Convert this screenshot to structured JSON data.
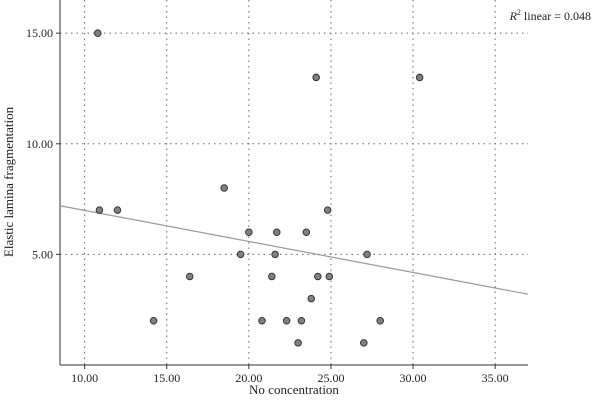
{
  "chart_data": {
    "type": "scatter",
    "title": "",
    "xlabel": "No concentration",
    "ylabel": "Elastic lamina fragmentation",
    "xlim": [
      8.5,
      37
    ],
    "ylim": [
      0,
      16.5
    ],
    "x_ticks": [
      "10.00",
      "15.00",
      "20.00",
      "25.00",
      "30.00",
      "35.00"
    ],
    "x_tick_values": [
      10,
      15,
      20,
      25,
      30,
      35
    ],
    "y_ticks": [
      "5.00",
      "10.00",
      "15.00"
    ],
    "y_tick_values": [
      5,
      10,
      15
    ],
    "grid": true,
    "point_color": "#808080",
    "line_color": "#999999",
    "points": [
      {
        "x": 10.8,
        "y": 15
      },
      {
        "x": 10.9,
        "y": 7
      },
      {
        "x": 12.0,
        "y": 7
      },
      {
        "x": 14.2,
        "y": 2
      },
      {
        "x": 16.4,
        "y": 4
      },
      {
        "x": 18.5,
        "y": 8
      },
      {
        "x": 19.5,
        "y": 5
      },
      {
        "x": 20.0,
        "y": 6
      },
      {
        "x": 20.8,
        "y": 2
      },
      {
        "x": 21.4,
        "y": 4
      },
      {
        "x": 21.6,
        "y": 5
      },
      {
        "x": 21.7,
        "y": 6
      },
      {
        "x": 22.3,
        "y": 2
      },
      {
        "x": 23.0,
        "y": 1
      },
      {
        "x": 23.2,
        "y": 2
      },
      {
        "x": 23.5,
        "y": 6
      },
      {
        "x": 23.8,
        "y": 3
      },
      {
        "x": 24.1,
        "y": 13
      },
      {
        "x": 24.2,
        "y": 4
      },
      {
        "x": 24.8,
        "y": 7
      },
      {
        "x": 24.9,
        "y": 4
      },
      {
        "x": 27.0,
        "y": 1
      },
      {
        "x": 27.2,
        "y": 5
      },
      {
        "x": 28.0,
        "y": 2
      },
      {
        "x": 30.4,
        "y": 13
      }
    ],
    "fit_line": {
      "x": [
        8.5,
        37
      ],
      "y": [
        7.2,
        3.2
      ]
    },
    "r2_label_prefix": "R",
    "r2_label_sup": "2",
    "r2_label_rest": " linear = 0.048"
  }
}
